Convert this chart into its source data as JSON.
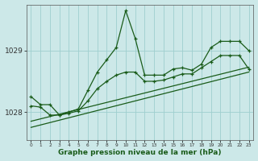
{
  "xlabel": "Graphe pression niveau de la mer (hPa)",
  "background_color": "#cce8e8",
  "grid_color": "#9ecece",
  "line_color": "#1a5c1a",
  "ylim": [
    1027.55,
    1029.75
  ],
  "xlim": [
    -0.5,
    23.5
  ],
  "yticks": [
    1028,
    1029
  ],
  "xticks": [
    0,
    1,
    2,
    3,
    4,
    5,
    6,
    7,
    8,
    9,
    10,
    11,
    12,
    13,
    14,
    15,
    16,
    17,
    18,
    19,
    20,
    21,
    22,
    23
  ],
  "series1": [
    1028.25,
    1028.12,
    1028.12,
    1027.95,
    1028.0,
    1028.05,
    1028.35,
    1028.65,
    1028.85,
    1029.05,
    1029.65,
    1029.2,
    1028.6,
    1028.6,
    1028.6,
    1028.7,
    1028.72,
    1028.68,
    1028.78,
    1029.05,
    1029.15,
    1029.15,
    1029.15,
    1029.0
  ],
  "series2": [
    1028.1,
    1028.08,
    1027.95,
    1027.95,
    1027.98,
    1028.02,
    1028.18,
    1028.38,
    1028.5,
    1028.6,
    1028.65,
    1028.65,
    1028.5,
    1028.5,
    1028.52,
    1028.57,
    1028.62,
    1028.62,
    1028.72,
    1028.82,
    1028.92,
    1028.92,
    1028.92,
    1028.7
  ],
  "series3_x": [
    0,
    23
  ],
  "series3_y": [
    1027.85,
    1028.73
  ],
  "series4_x": [
    0,
    23
  ],
  "series4_y": [
    1027.75,
    1028.65
  ]
}
